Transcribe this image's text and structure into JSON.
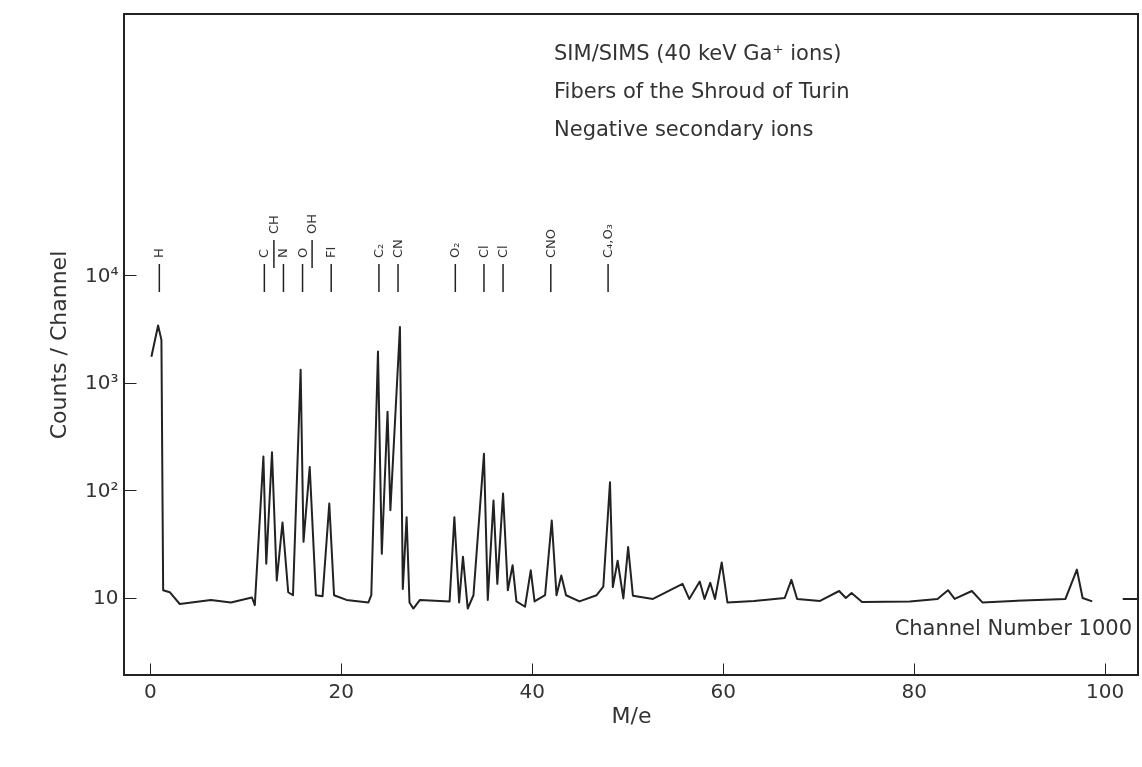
{
  "chart_data": {
    "type": "line",
    "title": "SIM/SIMS (40 keV Ga⁺ ions)",
    "subtitle": "Fibers of the Shroud of Turin",
    "xlabel": "M/e",
    "ylabel": "Counts / Channel",
    "x": [
      0.17,
      0.87,
      1.22,
      1.4,
      2.09,
      3.14,
      6.4,
      8.5,
      10.7,
      11.0,
      11.9,
      12.2,
      12.8,
      13.3,
      13.9,
      14.5,
      15.0,
      15.8,
      16.1,
      16.75,
      17.4,
      18.1,
      18.8,
      19.3,
      20.6,
      22.9,
      23.2,
      23.9,
      24.3,
      24.9,
      25.2,
      26.2,
      26.5,
      26.9,
      27.2,
      27.6,
      28.3,
      31.4,
      31.9,
      32.4,
      32.8,
      33.3,
      33.9,
      35.0,
      35.4,
      36.0,
      36.4,
      37.0,
      37.5,
      38.0,
      38.4,
      39.3,
      39.9,
      40.3,
      41.4,
      42.1,
      42.6,
      43.1,
      43.6,
      45.0,
      46.8,
      47.5,
      48.2,
      48.5,
      49.0,
      49.6,
      50.1,
      50.6,
      52.7,
      55.8,
      56.5,
      57.6,
      58.1,
      58.7,
      59.2,
      59.9,
      60.5,
      63.3,
      66.5,
      67.2,
      67.8,
      70.2,
      72.2,
      72.9,
      73.5,
      74.6,
      79.6,
      82.5,
      83.6,
      84.3,
      86.1,
      87.2,
      90.4,
      95.9,
      97.1,
      97.7,
      98.7,
      100.5,
      101.9,
      103.4
    ],
    "series": [
      {
        "color": "#222222",
        "values": [
          1740,
          3400,
          2500,
          11.7,
          11.2,
          8.7,
          9.5,
          9,
          10,
          8.5,
          205,
          20.6,
          225,
          14.4,
          50,
          11.2,
          10.5,
          1320,
          33,
          164,
          10.5,
          10.3,
          75,
          10.5,
          9.5,
          9,
          10.5,
          1950,
          25.5,
          535,
          65,
          3300,
          12,
          56,
          9,
          7.9,
          9.5,
          9.2,
          56,
          9,
          24,
          7.9,
          10.5,
          218,
          9.5,
          80,
          13.4,
          93,
          11.7,
          20,
          9.2,
          8.2,
          17.9,
          9.2,
          10.5,
          52,
          10.5,
          16,
          10.5,
          9.2,
          10.5,
          12.6,
          118,
          12.5,
          22,
          9.8,
          29.5,
          10.4,
          9.7,
          13.4,
          9.7,
          14.1,
          9.7,
          13.7,
          9.7,
          21.2,
          9,
          9.3,
          9.9,
          14.6,
          9.7,
          9.3,
          11.5,
          9.9,
          11,
          9.1,
          9.2,
          9.7,
          11.7,
          9.7,
          11.5,
          9,
          9.3,
          9.7,
          18.2,
          9.9,
          9.2,
          null,
          9.7,
          9.7
        ]
      }
    ],
    "xlim": [
      -2.7,
      103.5
    ],
    "ylim": [
      1.9,
      2700000
    ],
    "xticks": [
      0,
      20,
      40,
      60,
      80,
      100
    ],
    "yticks": [
      {
        "value": 10,
        "label": "10"
      },
      {
        "value": 100,
        "label": "10²"
      },
      {
        "value": 1000,
        "label": "10³"
      },
      {
        "value": 10000,
        "label": "10⁴"
      }
    ],
    "log": true,
    "grid": false,
    "annotations": [
      "Negative secondary ions",
      "Channel Number 1000"
    ],
    "ref_lines": [
      {
        "axis": "x",
        "value": 1,
        "label": "H"
      },
      {
        "axis": "x",
        "value": 12,
        "label": "C"
      },
      {
        "axis": "x",
        "value": 13,
        "label": "CH"
      },
      {
        "axis": "x",
        "value": 14,
        "label": "N"
      },
      {
        "axis": "x",
        "value": 16,
        "label": "O"
      },
      {
        "axis": "x",
        "value": 17,
        "label": "OH"
      },
      {
        "axis": "x",
        "value": 19,
        "label": "FI"
      },
      {
        "axis": "x",
        "value": 24,
        "label": "C₂"
      },
      {
        "axis": "x",
        "value": 26,
        "label": "CN"
      },
      {
        "axis": "x",
        "value": 32,
        "label": "O₂"
      },
      {
        "axis": "x",
        "value": 35,
        "label": "Cl"
      },
      {
        "axis": "x",
        "value": 37,
        "label": "Cl"
      },
      {
        "axis": "x",
        "value": 42,
        "label": "CNO"
      },
      {
        "axis": "x",
        "value": 48,
        "label": "C₄,O₃"
      }
    ]
  }
}
